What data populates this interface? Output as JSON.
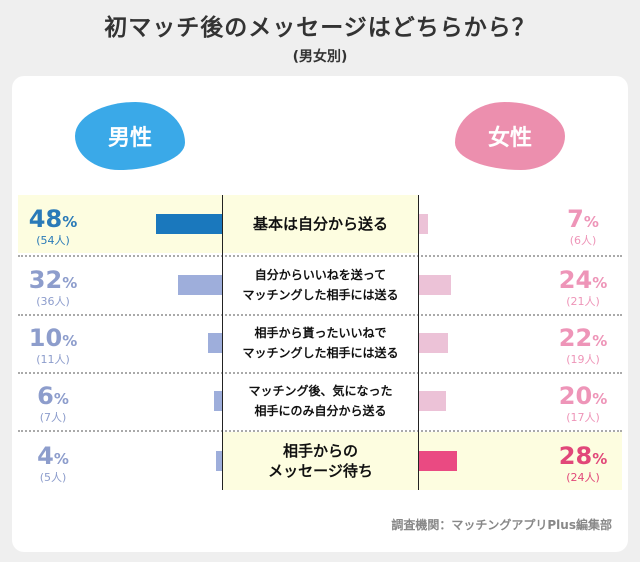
{
  "title": "初マッチ後のメッセージはどちらから？",
  "subtitle": "(男女別)",
  "chart_data": {
    "type": "bar",
    "orientation": "diverging-horizontal",
    "categories": [
      "基本は自分から送る",
      "自分からいいねを送って\nマッチングした相手には送る",
      "相手から貰ったいいねで\nマッチングした相手には送る",
      "マッチング後、気になった\n相手にのみ自分から送る",
      "相手からの\nメッセージ待ち"
    ],
    "series": [
      {
        "name": "男性",
        "values": [
          48,
          32,
          10,
          6,
          4
        ],
        "counts": [
          "(54人)",
          "(36人)",
          "(11人)",
          "(7人)",
          "(5人)"
        ],
        "highlight_index": 0,
        "color": "#1a78bd",
        "muted_color": "#9eaedb",
        "text_color": "#2a7ab8",
        "muted_text_color": "#8d9dcc"
      },
      {
        "name": "女性",
        "values": [
          7,
          24,
          22,
          20,
          28
        ],
        "counts": [
          "(6人)",
          "(21人)",
          "(19人)",
          "(17人)",
          "(24人)"
        ],
        "highlight_index": 4,
        "color": "#ea4a82",
        "muted_color": "#ecc2d7",
        "text_color": "#e14779",
        "muted_text_color": "#ee95b8"
      }
    ],
    "unit": "%"
  },
  "source": "調査機関：マッチングアプリPlus編集部"
}
